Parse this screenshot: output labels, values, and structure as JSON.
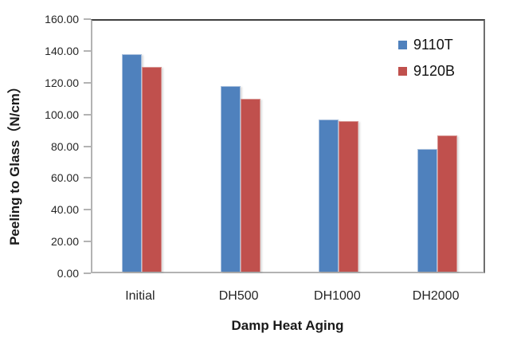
{
  "chart_data": {
    "type": "bar",
    "title": "",
    "xlabel": "Damp Heat Aging",
    "ylabel": "Peeling to Glass（N/cm）",
    "categories": [
      "Initial",
      "DH500",
      "DH1000",
      "DH2000"
    ],
    "series": [
      {
        "name": "9110T",
        "color": "#4F81BD",
        "border_color": "#A9C0DE",
        "values": [
          137,
          117,
          96,
          77
        ]
      },
      {
        "name": "9120B",
        "color": "#C0504D",
        "border_color": "#D89592",
        "values": [
          129,
          109,
          95,
          86
        ]
      }
    ],
    "ylim": [
      0,
      160
    ],
    "ytick_step": 20,
    "ytick_labels": [
      "0.00",
      "20.00",
      "40.00",
      "60.00",
      "80.00",
      "100.00",
      "120.00",
      "140.00",
      "160.00"
    ],
    "grid": false,
    "legend_position": "upper-right"
  }
}
